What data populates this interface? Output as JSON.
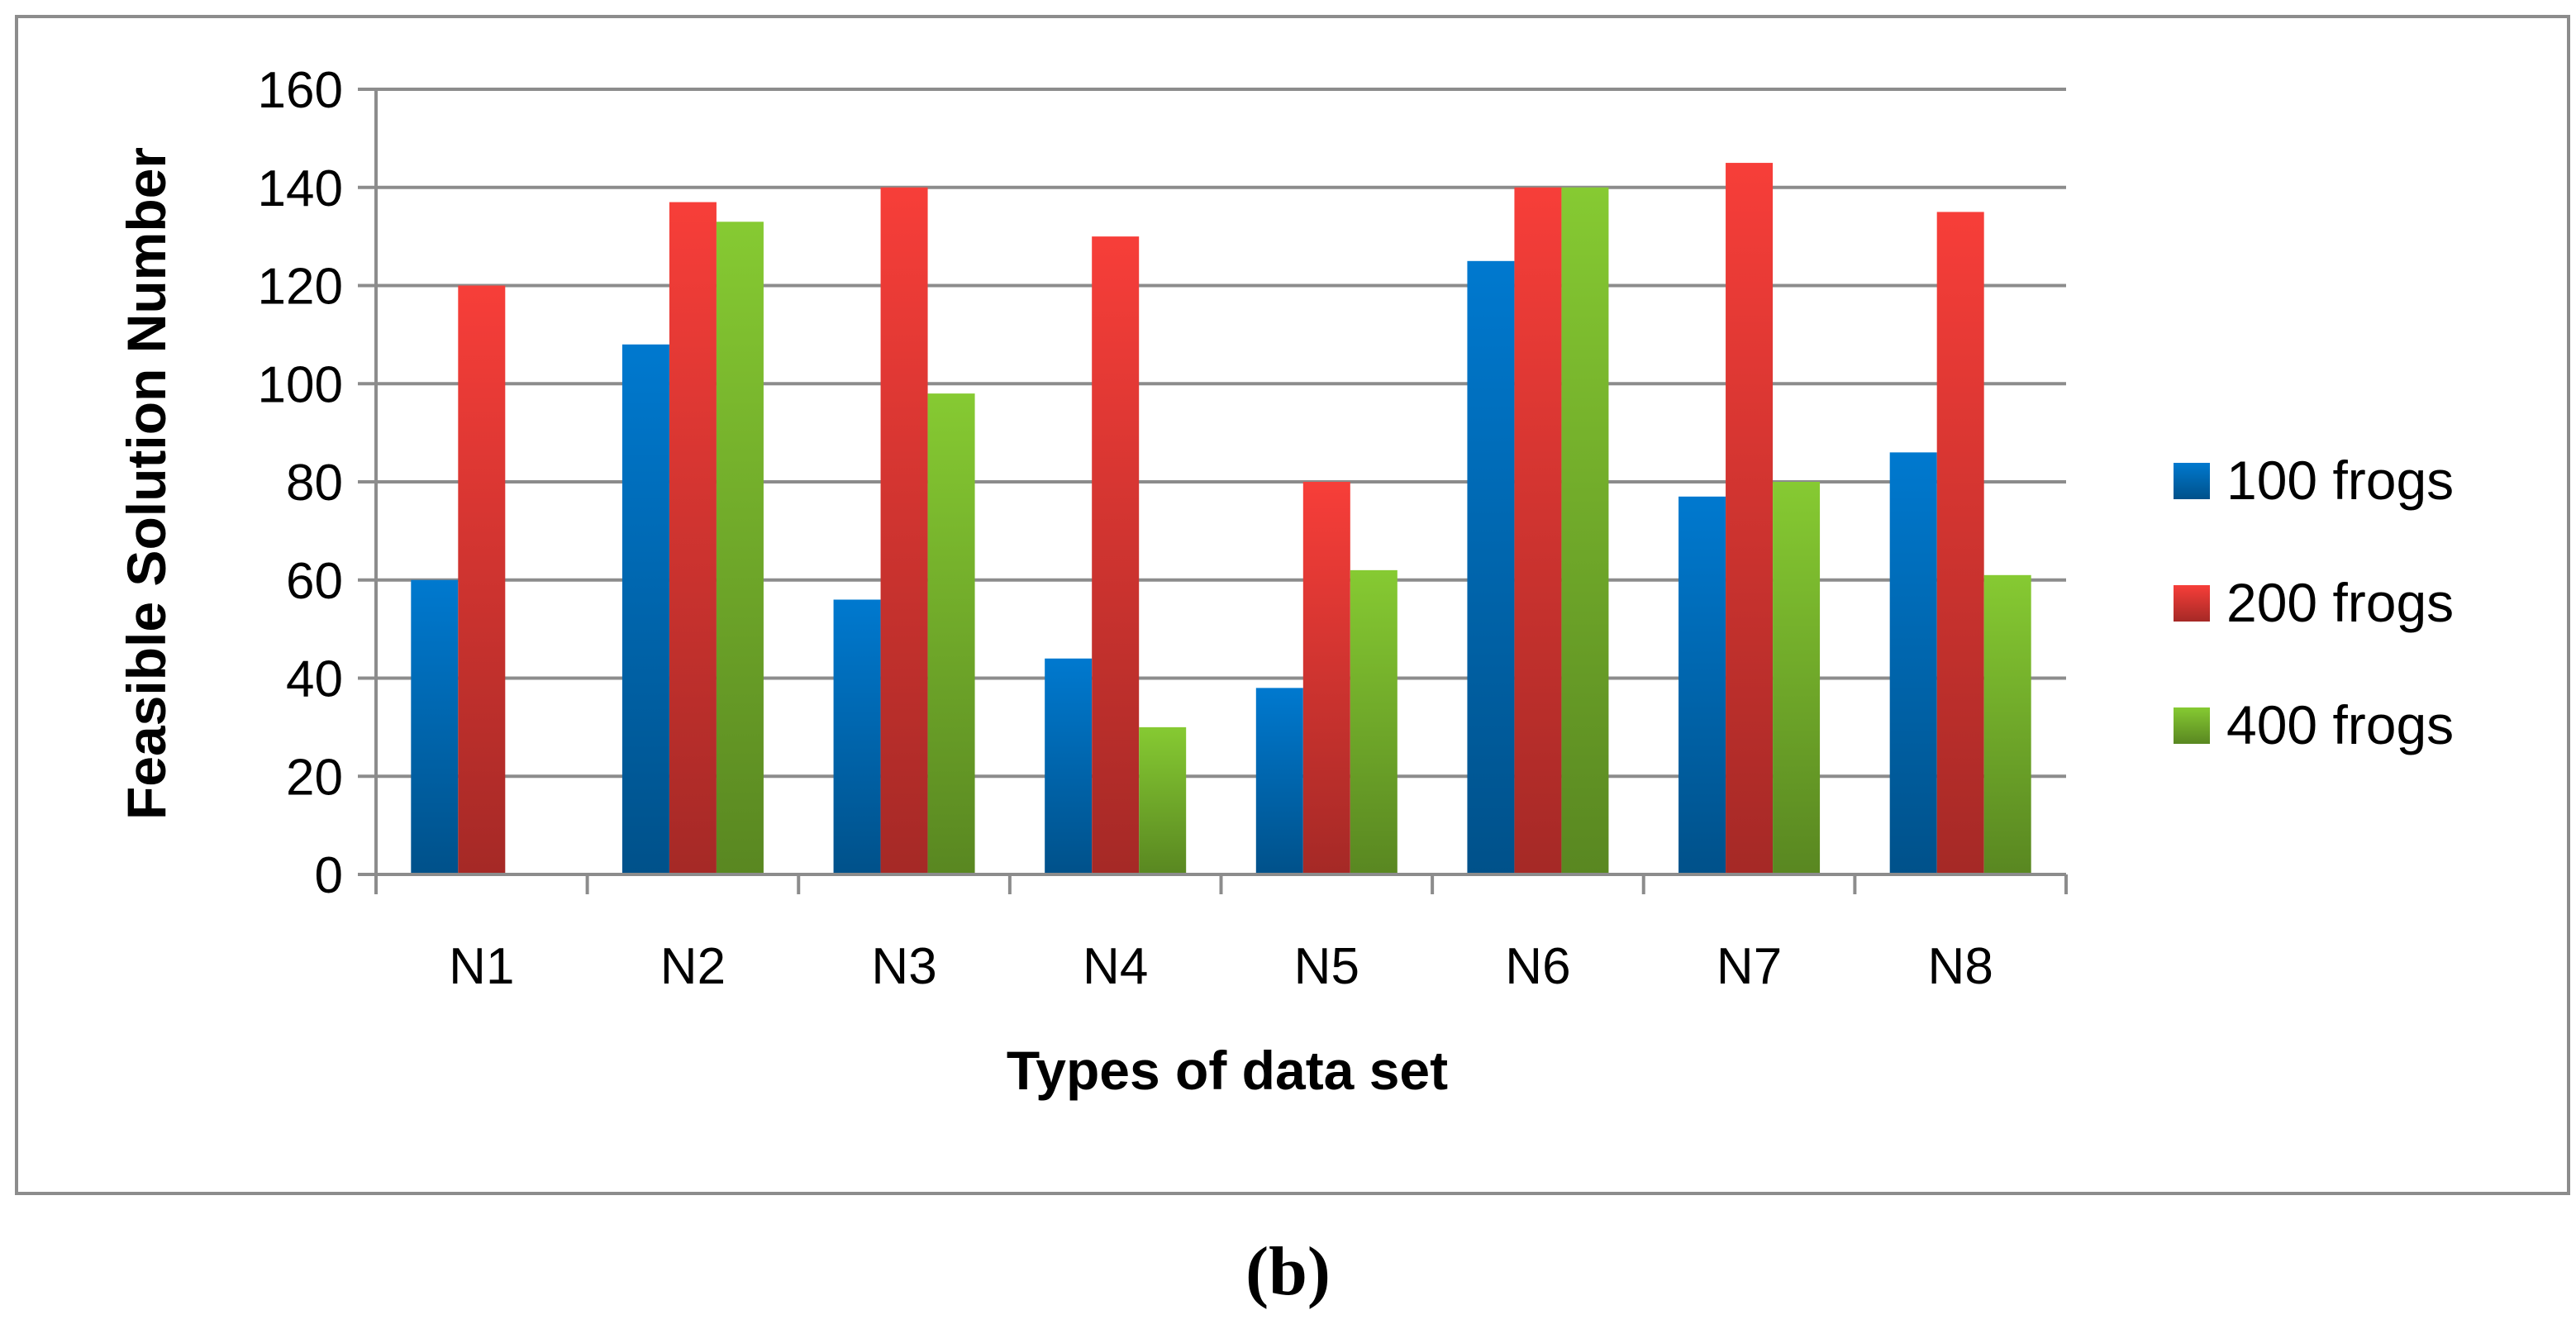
{
  "caption": "(b)",
  "chart_data": {
    "type": "bar",
    "title": "",
    "xlabel": "Types of data set",
    "ylabel": "Feasible Solution Number",
    "categories": [
      "N1",
      "N2",
      "N3",
      "N4",
      "N5",
      "N6",
      "N7",
      "N8"
    ],
    "ylim": [
      0,
      160
    ],
    "yticks": [
      0,
      20,
      40,
      60,
      80,
      100,
      120,
      140,
      160
    ],
    "grid": true,
    "legend": "right",
    "series": [
      {
        "name": "100 frogs",
        "color": "#0070c0",
        "values": [
          60,
          108,
          56,
          44,
          38,
          125,
          77,
          86
        ]
      },
      {
        "name": "200 frogs",
        "color": "#e53935",
        "values": [
          120,
          137,
          140,
          130,
          80,
          140,
          145,
          135
        ]
      },
      {
        "name": "400 frogs",
        "color": "#7cbb2e",
        "values": [
          0,
          133,
          98,
          30,
          62,
          140,
          80,
          61
        ]
      }
    ]
  }
}
